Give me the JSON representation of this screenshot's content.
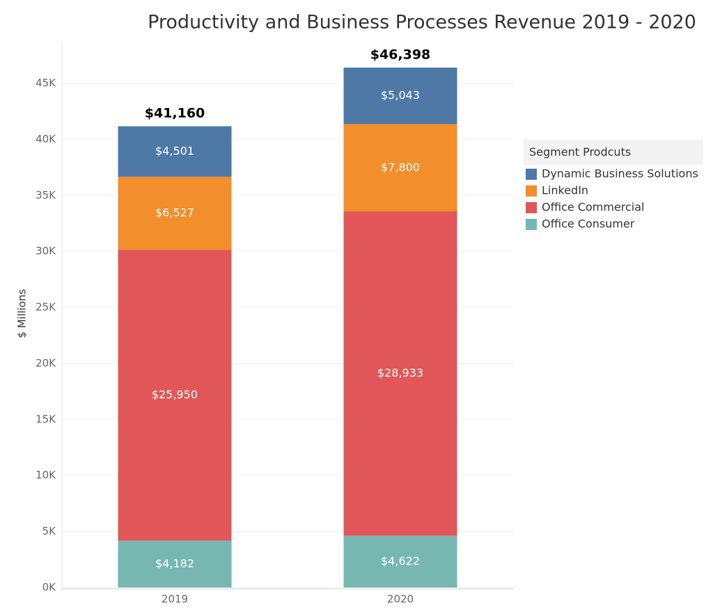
{
  "chart_data": {
    "type": "stacked-bar",
    "title": "Productivity and Business Processes Revenue 2019 - 2020",
    "y_label": "$ Millions",
    "categories": [
      "2019",
      "2020"
    ],
    "series": [
      {
        "name": "Office Consumer",
        "color": "#76b7b2",
        "values": [
          4182,
          4622
        ],
        "value_labels": [
          "$4,182",
          "$4,622"
        ]
      },
      {
        "name": "Office Commercial",
        "color": "#e15759",
        "values": [
          25950,
          28933
        ],
        "value_labels": [
          "$25,950",
          "$28,933"
        ]
      },
      {
        "name": "LinkedIn",
        "color": "#f28e2b",
        "values": [
          6527,
          7800
        ],
        "value_labels": [
          "$6,527",
          "$7,800"
        ]
      },
      {
        "name": "Dynamic Business Solutions",
        "color": "#4e79a7",
        "values": [
          4501,
          5043
        ],
        "value_labels": [
          "$4,501",
          "$5,043"
        ]
      }
    ],
    "totals": {
      "values": [
        41160,
        46398
      ],
      "value_labels": [
        "$41,160",
        "$46,398"
      ]
    },
    "legend_title": "Segment Prodcuts",
    "legend": "right",
    "grid": true,
    "ylim": [
      0,
      48700
    ],
    "yticks": [
      {
        "value": 0,
        "label": "0K"
      },
      {
        "value": 5000,
        "label": "5K"
      },
      {
        "value": 10000,
        "label": "10K"
      },
      {
        "value": 15000,
        "label": "15K"
      },
      {
        "value": 20000,
        "label": "20K"
      },
      {
        "value": 25000,
        "label": "25K"
      },
      {
        "value": 30000,
        "label": "30K"
      },
      {
        "value": 35000,
        "label": "35K"
      },
      {
        "value": 40000,
        "label": "40K"
      },
      {
        "value": 45000,
        "label": "45K"
      }
    ]
  }
}
